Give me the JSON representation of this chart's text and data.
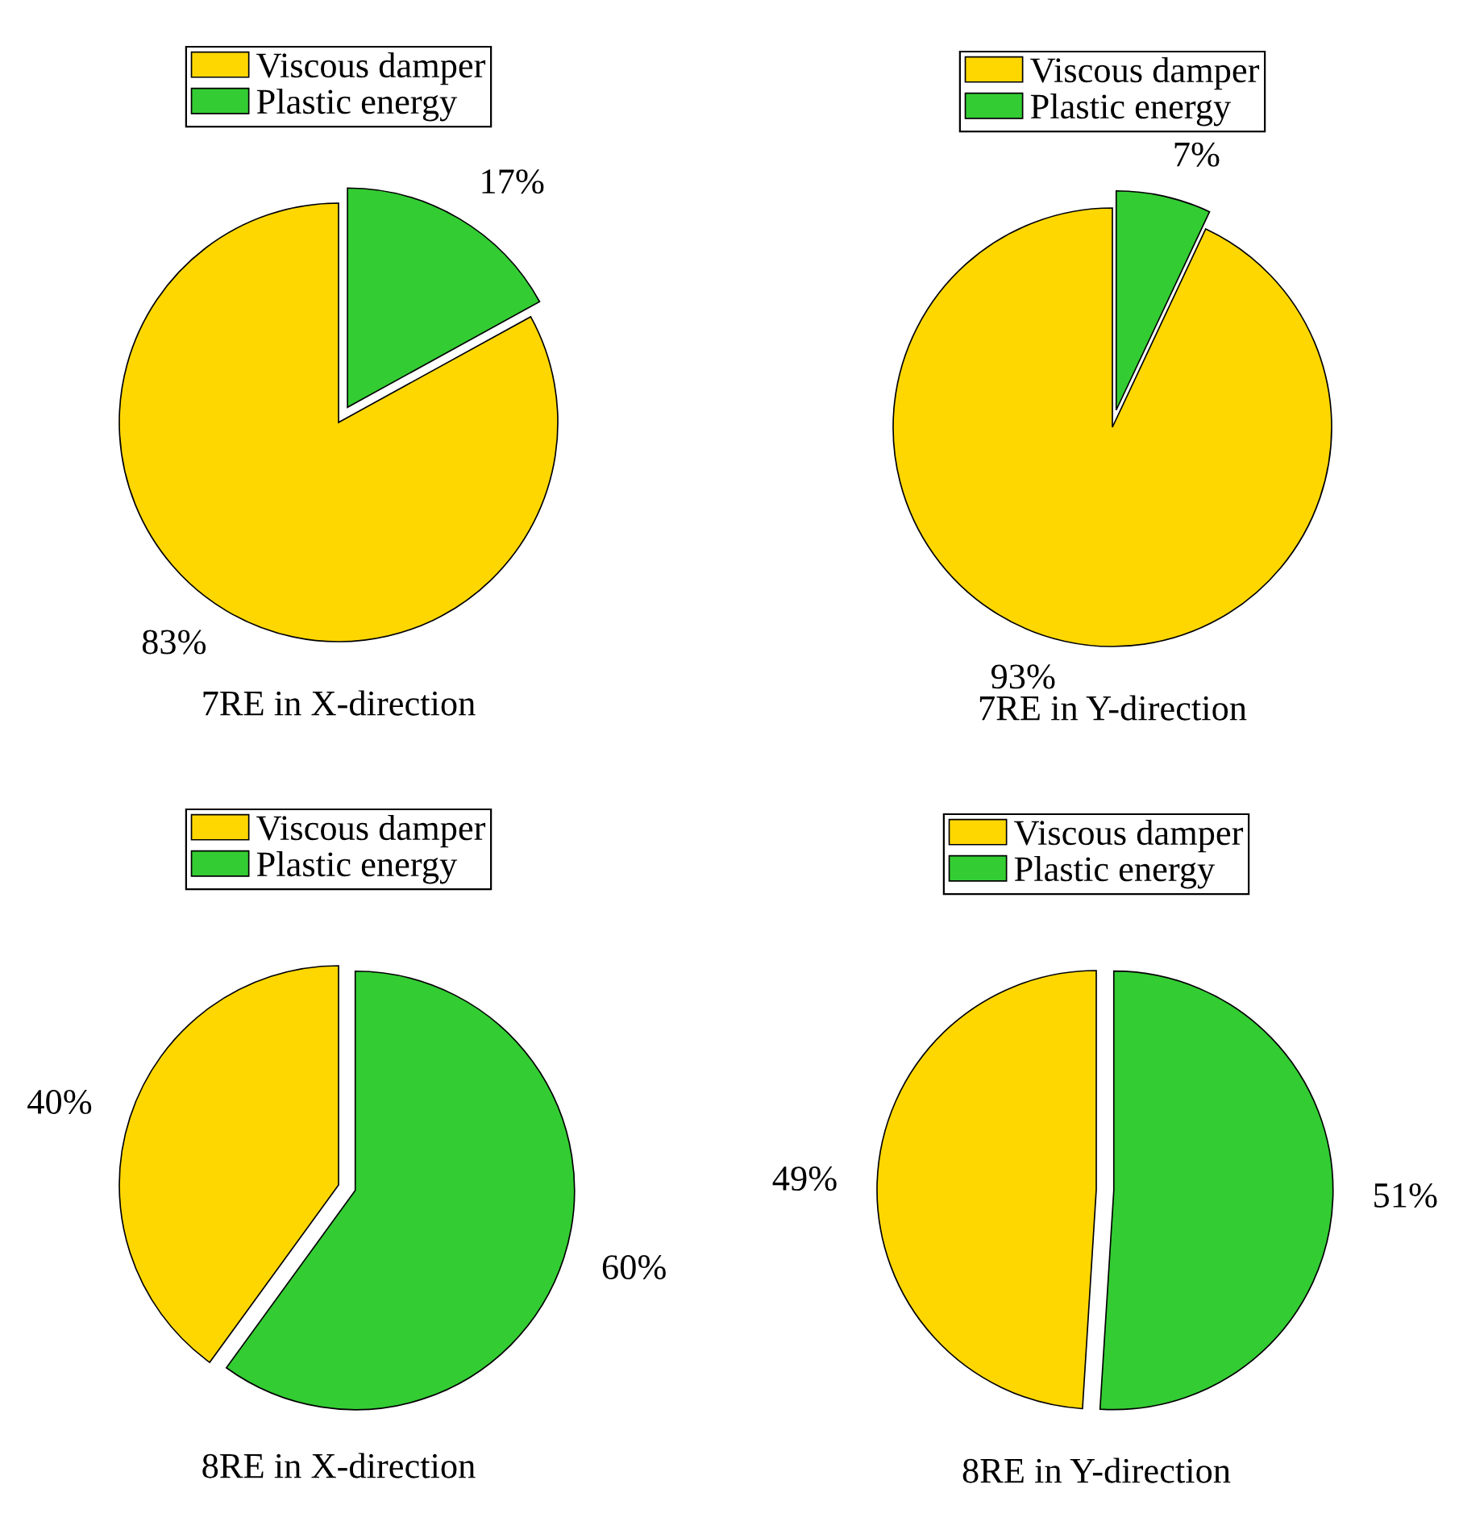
{
  "chart_data": [
    {
      "type": "pie",
      "title": "7RE in X-direction",
      "categories": [
        "Viscous damper",
        "Plastic energy"
      ],
      "values": [
        83,
        17
      ],
      "colors": [
        "#ffd700",
        "#33cc33"
      ],
      "value_labels": [
        "83%",
        "17%"
      ],
      "legend": "top"
    },
    {
      "type": "pie",
      "title": "7RE in Y-direction",
      "categories": [
        "Viscous damper",
        "Plastic energy"
      ],
      "values": [
        93,
        7
      ],
      "colors": [
        "#ffd700",
        "#33cc33"
      ],
      "value_labels": [
        "93%",
        "7%"
      ],
      "legend": "top"
    },
    {
      "type": "pie",
      "title": "8RE in X-direction",
      "categories": [
        "Viscous damper",
        "Plastic energy"
      ],
      "values": [
        40,
        60
      ],
      "colors": [
        "#ffd700",
        "#33cc33"
      ],
      "value_labels": [
        "40%",
        "60%"
      ],
      "legend": "top"
    },
    {
      "type": "pie",
      "title": "8RE in Y-direction",
      "categories": [
        "Viscous damper",
        "Plastic energy"
      ],
      "values": [
        49,
        51
      ],
      "colors": [
        "#ffd700",
        "#33cc33"
      ],
      "value_labels": [
        "49%",
        "51%"
      ],
      "legend": "top"
    }
  ]
}
